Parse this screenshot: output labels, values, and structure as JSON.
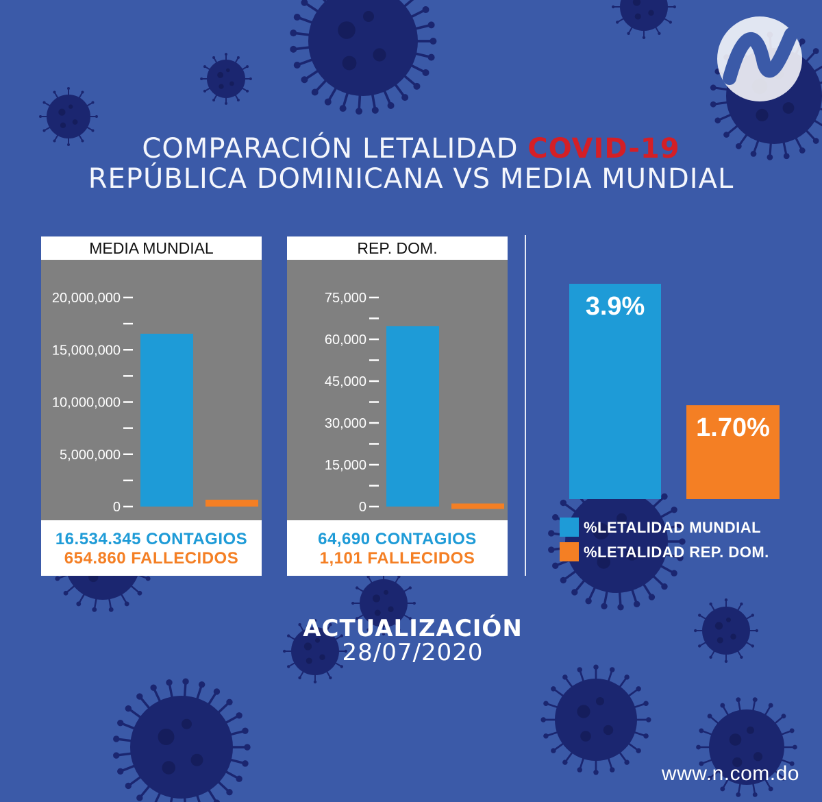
{
  "title": {
    "line1_prefix": "COMPARACIÓN LETALIDAD ",
    "line1_highlight": "COVID-19",
    "line2": "REPÚBLICA DOMINICANA VS MEDIA MUNDIAL",
    "highlight_color": "#d41f26"
  },
  "colors": {
    "background": "#3b5aa8",
    "virus": "#1b2670",
    "panel_bg": "#808080",
    "contagios": "#1e9bd7",
    "fallecidos": "#f47f24"
  },
  "chart_data": [
    {
      "type": "bar",
      "title": "MEDIA MUNDIAL",
      "categories": [
        "CONTAGIOS",
        "FALLECIDOS"
      ],
      "values": [
        16534345,
        654860
      ],
      "ylim": [
        0,
        20000000
      ],
      "yticks": [
        0,
        5000000,
        10000000,
        15000000,
        20000000
      ],
      "ytick_labels": [
        "0",
        "5,000,000",
        "10,000,000",
        "15,000,000",
        "20,000,000"
      ],
      "footer": [
        "16.534.345 CONTAGIOS",
        "654.860 FALLECIDOS"
      ]
    },
    {
      "type": "bar",
      "title": "REP. DOM.",
      "categories": [
        "CONTAGIOS",
        "FALLECIDOS"
      ],
      "values": [
        64690,
        1101
      ],
      "ylim": [
        0,
        75000
      ],
      "yticks": [
        0,
        15000,
        30000,
        45000,
        60000,
        75000
      ],
      "ytick_labels": [
        "0",
        "15,000",
        "30,000",
        "45,000",
        "60,000",
        "75,000"
      ],
      "footer": [
        "64,690 CONTAGIOS",
        "1,101 FALLECIDOS"
      ]
    },
    {
      "type": "bar",
      "categories": [
        "%LETALIDAD MUNDIAL",
        "%LETALIDAD REP. DOM."
      ],
      "values": [
        3.9,
        1.7
      ],
      "value_labels": [
        "3.9%",
        "1.70%"
      ],
      "ylim": [
        0,
        3.9
      ],
      "legend": [
        "%LETALIDAD MUNDIAL",
        "%LETALIDAD REP. DOM."
      ]
    }
  ],
  "update": {
    "label": "ACTUALIZACIÓN",
    "date": "28/07/2020"
  },
  "website": "www.n.com.do"
}
